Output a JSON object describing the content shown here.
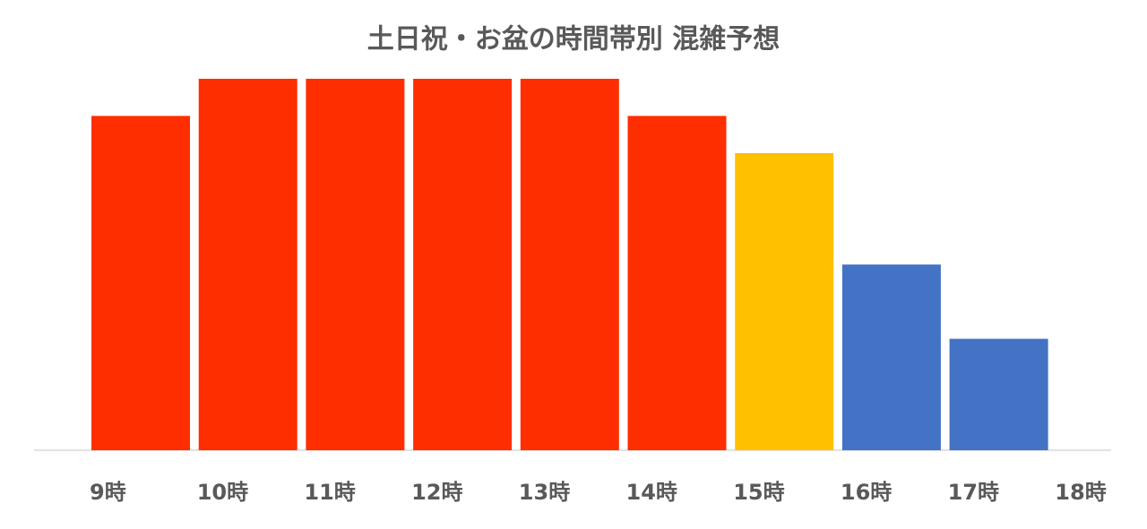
{
  "chart_data": {
    "type": "bar",
    "title": "土日祝・お盆の時間帯別 混雑予想",
    "categories": [
      "9時",
      "10時",
      "11時",
      "12時",
      "13時",
      "14時",
      "15時",
      "16時",
      "17時",
      "18時"
    ],
    "values": [
      9,
      10,
      10,
      10,
      10,
      9,
      8,
      5,
      3,
      null
    ],
    "colors": [
      "#ff2e00",
      "#ff2e00",
      "#ff2e00",
      "#ff2e00",
      "#ff2e00",
      "#ff2e00",
      "#ffc000",
      "#4472c4",
      "#4472c4",
      null
    ]
  }
}
